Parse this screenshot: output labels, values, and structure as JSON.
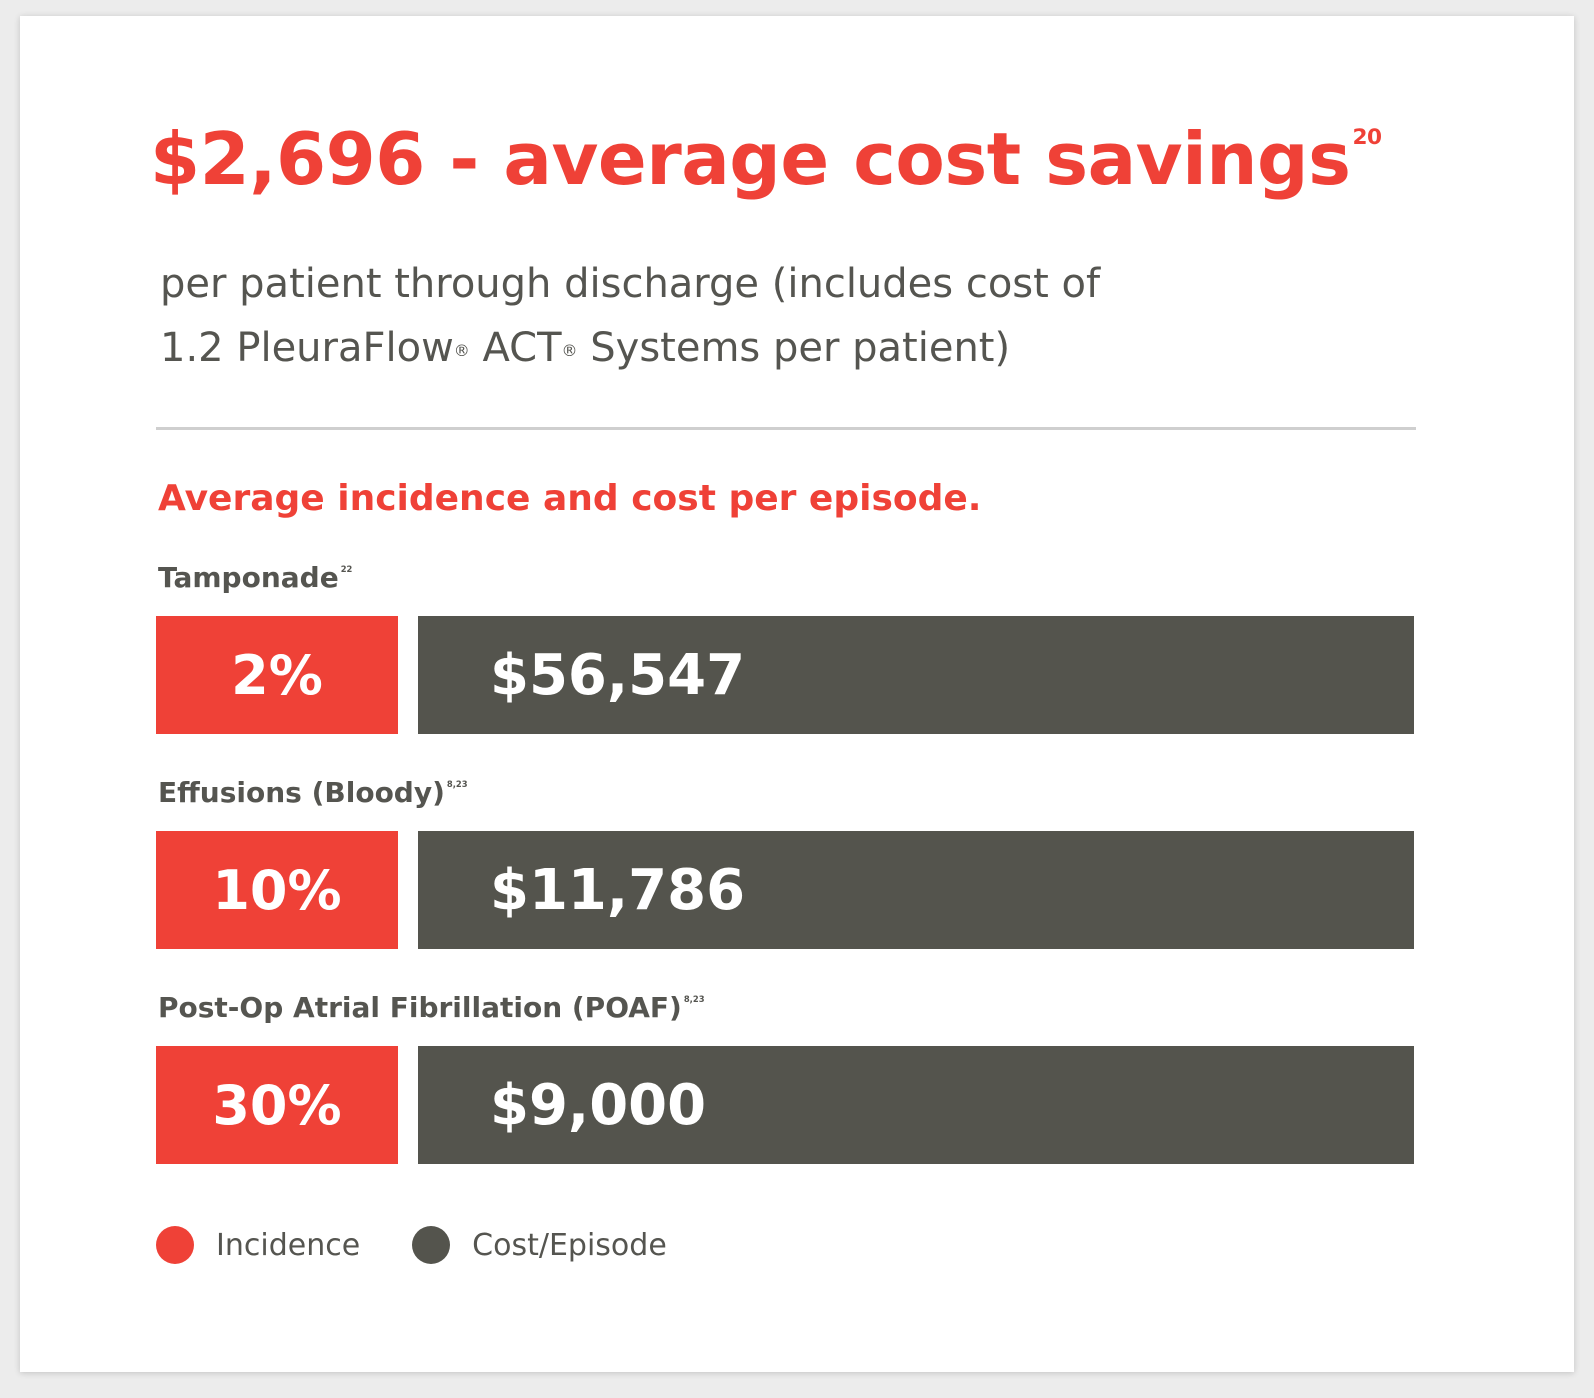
{
  "headline": {
    "text": "$2,696 - average cost savings",
    "superscript": "20"
  },
  "subtitle": {
    "line1": "per patient through discharge (includes cost of",
    "line2_part1": "1.2 PleuraFlow",
    "reg1": "®",
    "line2_part2": " ACT",
    "reg2": "®",
    "line2_part3": " Systems per patient)"
  },
  "section_title": "Average incidence and cost per episode.",
  "colors": {
    "accent_red": "#ef4137",
    "dark_gray": "#54544d",
    "divider": "#cfcfcf",
    "text_gray": "#555550"
  },
  "chart_data": {
    "type": "table",
    "title": "Average incidence and cost per episode.",
    "columns": [
      "Incidence",
      "Cost/Episode"
    ],
    "rows": [
      {
        "name": "Tamponade",
        "ref": "22",
        "incidence": 2,
        "incidence_label": "2%",
        "cost": 56547,
        "cost_label": "$56,547"
      },
      {
        "name": "Effusions (Bloody)",
        "ref": "8,23",
        "incidence": 10,
        "incidence_label": "10%",
        "cost": 11786,
        "cost_label": "$11,786"
      },
      {
        "name": "Post-Op Atrial Fibrillation (POAF)",
        "ref": "8,23",
        "incidence": 30,
        "incidence_label": "30%",
        "cost": 9000,
        "cost_label": "$9,000"
      }
    ],
    "legend": [
      {
        "label": "Incidence",
        "color": "#ef4137"
      },
      {
        "label": "Cost/Episode",
        "color": "#54544d"
      }
    ],
    "legend_position": "bottom-left"
  }
}
